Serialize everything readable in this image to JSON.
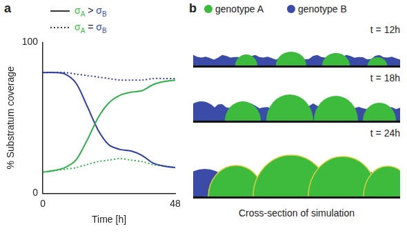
{
  "chart_data": {
    "type": "line",
    "panel_label": "a",
    "x_label": "Time [h]",
    "y_label": "% Substratum coverage",
    "x": [
      0,
      4,
      8,
      12,
      16,
      20,
      24,
      28,
      32,
      36,
      40,
      44,
      48
    ],
    "series": [
      {
        "name": "σA > σB",
        "color": "#2fae4a",
        "line_style": "solid",
        "values": [
          14,
          15,
          17,
          22,
          35,
          50,
          60,
          65,
          67,
          68,
          72,
          74,
          75
        ]
      },
      {
        "name": "σA > σB",
        "color": "#2b3d9c",
        "line_style": "solid",
        "values": [
          80,
          80,
          79,
          73,
          58,
          42,
          32,
          29,
          28,
          25,
          20,
          18,
          17
        ]
      },
      {
        "name": "σA = σB",
        "color": "#2fae4a",
        "line_style": "dotted",
        "values": [
          14,
          15,
          16,
          17,
          19,
          21,
          22,
          23,
          22,
          21,
          19,
          18,
          17
        ]
      },
      {
        "name": "σA = σB",
        "color": "#2b3d9c",
        "line_style": "dotted",
        "values": [
          80,
          80,
          80,
          79,
          78,
          77,
          76,
          75,
          75,
          75,
          76,
          76,
          76
        ]
      }
    ],
    "xlim": [
      0,
      48
    ],
    "xticks": [
      0,
      48
    ],
    "ylim": [
      0,
      100
    ],
    "yticks": [
      0,
      100
    ],
    "grid": false,
    "legend": "top"
  },
  "panel_b": {
    "panel_label": "b",
    "legend": [
      {
        "name": "genotype A",
        "color": "#3dbb3d"
      },
      {
        "name": "genotype B",
        "color": "#3a4ca8"
      }
    ],
    "snapshots": [
      "t = 12h",
      "t = 18h",
      "t = 24h"
    ],
    "caption": "Cross-section of simulation"
  }
}
